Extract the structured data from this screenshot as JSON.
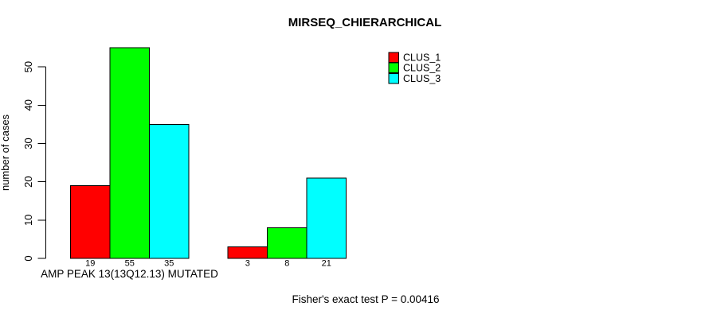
{
  "chart_data": {
    "type": "bar",
    "title": "MIRSEQ_CHIERARCHICAL",
    "ylabel": "number of cases",
    "xlabel": "AMP PEAK 13(13Q12.13) MUTATED",
    "categories": [
      "AMP PEAK 13(13Q12.13) MUTATED",
      ""
    ],
    "series": [
      {
        "name": "CLUS_1",
        "color": "#ff0000",
        "values": [
          19,
          3
        ]
      },
      {
        "name": "CLUS_2",
        "color": "#00ff00",
        "values": [
          55,
          8
        ]
      },
      {
        "name": "CLUS_3",
        "color": "#00ffff",
        "values": [
          35,
          21
        ]
      }
    ],
    "bar_value_labels": [
      [
        19,
        55,
        35
      ],
      [
        3,
        8,
        21
      ]
    ],
    "yticks": [
      0,
      10,
      20,
      30,
      40,
      50
    ],
    "ylim": [
      0,
      55
    ],
    "grid": false,
    "legend_position": "top-right",
    "annotation": "Fisher's exact test P = 0.00416",
    "axis_color": "#000000",
    "bar_border_color": "#000000",
    "background_color": "#ffffff"
  }
}
